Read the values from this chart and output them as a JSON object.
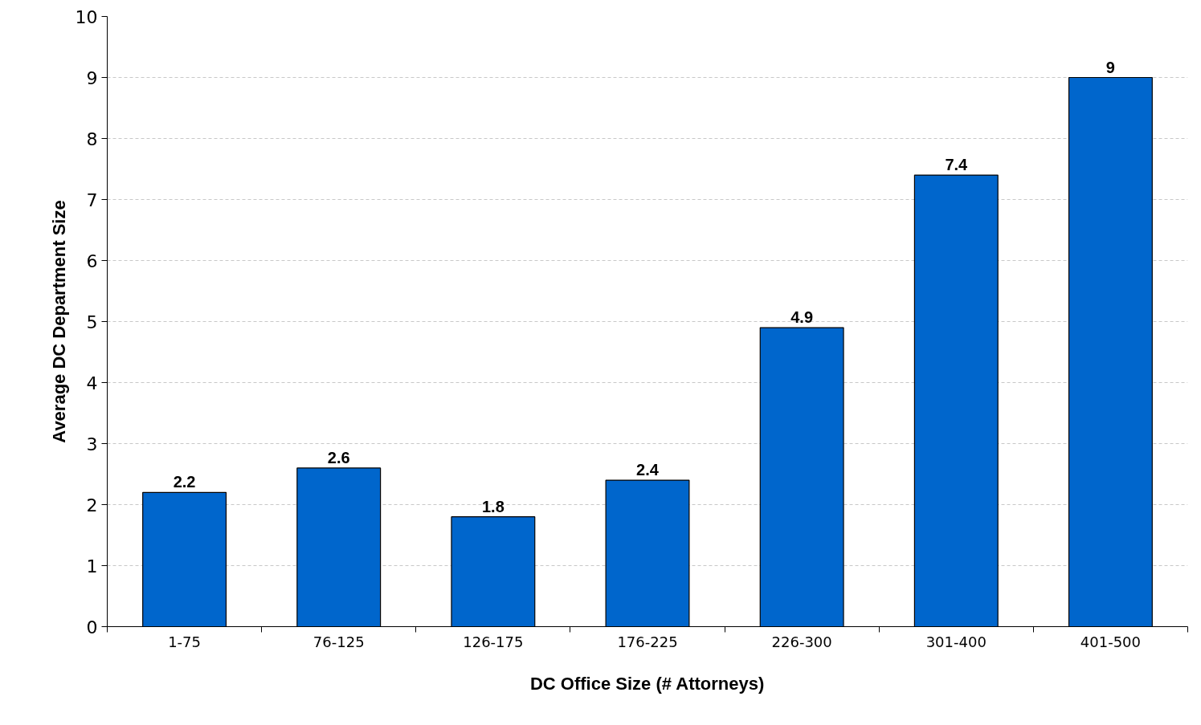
{
  "chart_data": {
    "type": "bar",
    "xlabel": "DC Office Size (# Attorneys)",
    "ylabel": "Average DC Department Size",
    "categories": [
      "1-75",
      "76-125",
      "126-175",
      "176-225",
      "226-300",
      "301-400",
      "401-500"
    ],
    "values": [
      2.2,
      2.6,
      1.8,
      2.4,
      4.9,
      7.4,
      9
    ],
    "color": "#0066cc",
    "ylim": [
      0,
      10
    ],
    "yticks": [
      0,
      1,
      2,
      3,
      4,
      5,
      6,
      7,
      8,
      9,
      10
    ],
    "grid": "y",
    "data_labels": true
  }
}
